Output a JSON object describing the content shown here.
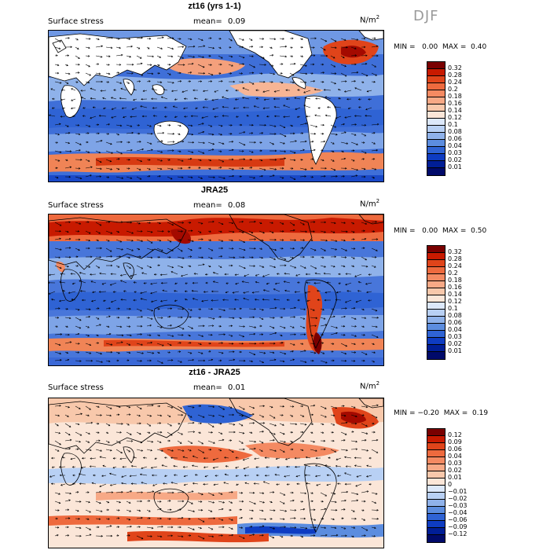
{
  "season": "DJF",
  "panels": [
    {
      "title": "zt16 (yrs 1-1)",
      "field": "Surface stress",
      "mean_label": "mean=",
      "mean": "0.09",
      "unit": "N/m",
      "unit_exp": "2",
      "min_label": "MIN =",
      "min": "0.00",
      "max_label": "MAX =",
      "max": "0.40",
      "colorbar": [
        "0.32",
        "0.28",
        "0.24",
        "0.2",
        "0.18",
        "0.16",
        "0.14",
        "0.12",
        "0.1",
        "0.08",
        "0.06",
        "0.04",
        "0.03",
        "0.02",
        "0.01"
      ]
    },
    {
      "title": "JRA25",
      "field": "Surface stress",
      "mean_label": "mean=",
      "mean": "0.08",
      "unit": "N/m",
      "unit_exp": "2",
      "min_label": "MIN =",
      "min": "0.00",
      "max_label": "MAX =",
      "max": "0.50",
      "colorbar": [
        "0.32",
        "0.28",
        "0.24",
        "0.2",
        "0.18",
        "0.16",
        "0.14",
        "0.12",
        "0.1",
        "0.08",
        "0.06",
        "0.04",
        "0.03",
        "0.02",
        "0.01"
      ]
    },
    {
      "title": "zt16 - JRA25",
      "field": "Surface stress",
      "mean_label": "mean=",
      "mean": "0.01",
      "unit": "N/m",
      "unit_exp": "2",
      "min_label": "MIN =",
      "min": "−0.20",
      "max_label": "MAX =",
      "max": "0.19",
      "colorbar": [
        "0.12",
        "0.09",
        "0.06",
        "0.04",
        "0.03",
        "0.02",
        "0.01",
        "0",
        "−0.01",
        "−0.02",
        "−0.03",
        "−0.04",
        "−0.06",
        "−0.09",
        "−0.12"
      ]
    }
  ],
  "colors": {
    "scale": [
      "#7a0000",
      "#c81a00",
      "#e0441a",
      "#ee6a3e",
      "#f48a62",
      "#f7a986",
      "#f8c8ab",
      "#fbe6d8",
      "#dce8fa",
      "#b8d0f4",
      "#8fb2ea",
      "#5c8ddf",
      "#2f63d4",
      "#0e3cc2",
      "#001e96",
      "#000a6a"
    ],
    "land": "#ffffff"
  }
}
